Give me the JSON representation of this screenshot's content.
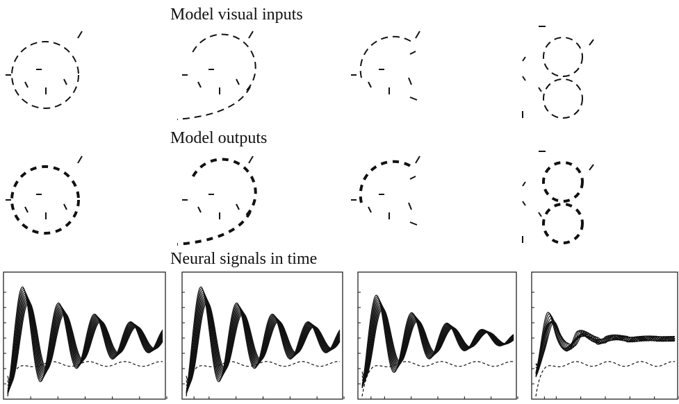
{
  "figure": {
    "sections": [
      "Model visual inputs",
      "Model outputs",
      "Neural signals in time"
    ]
  }
}
